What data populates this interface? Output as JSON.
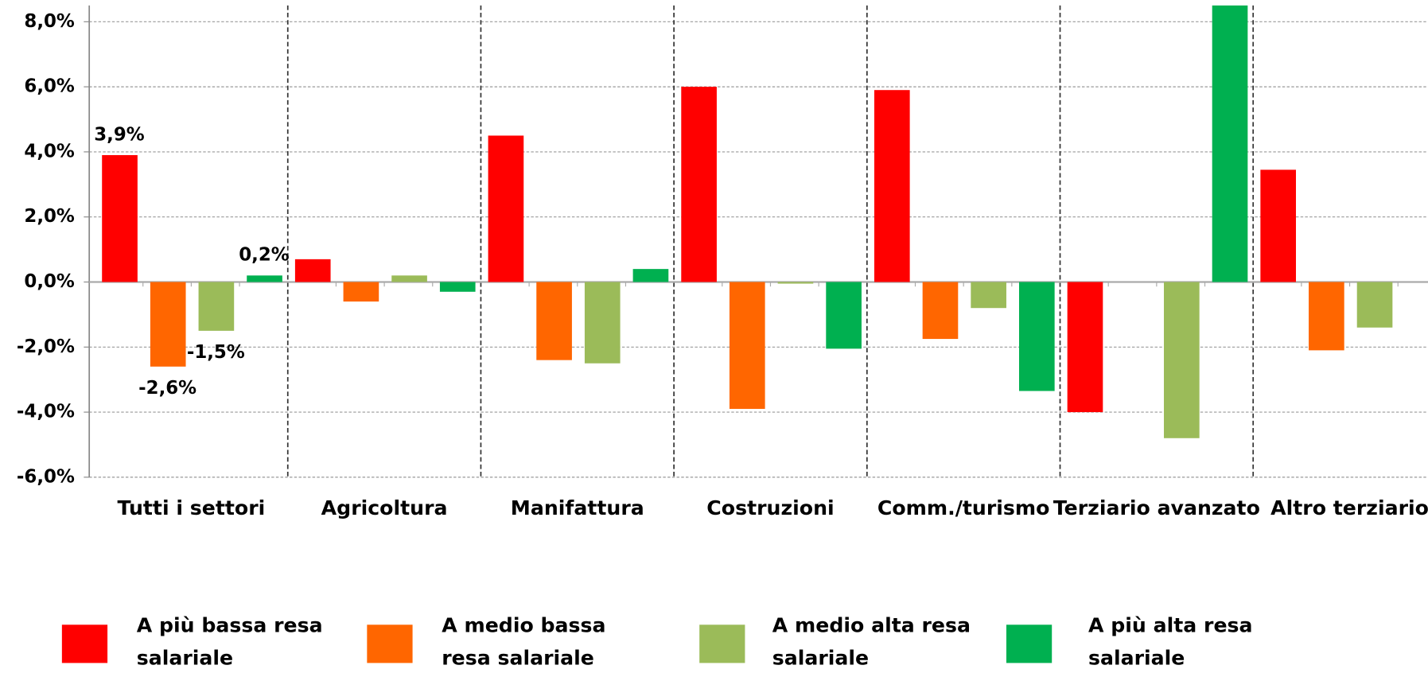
{
  "chart_data": {
    "type": "bar",
    "categories": [
      "Tutti i settori",
      "Agricoltura",
      "Manifattura",
      "Costruzioni",
      "Comm./turismo",
      "Terziario avanzato",
      "Altro terziario"
    ],
    "series": [
      {
        "name": "A più bassa resa salariale",
        "color": "#ff0000",
        "values": [
          3.9,
          0.7,
          4.5,
          6.0,
          5.9,
          -4.0,
          3.45
        ],
        "value_labels": [
          "3,9%",
          null,
          null,
          null,
          null,
          null,
          null
        ]
      },
      {
        "name": "A medio bassa resa salariale",
        "color": "#ff6600",
        "values": [
          -2.6,
          -0.6,
          -2.4,
          -3.9,
          -1.75,
          0,
          -2.1
        ],
        "value_labels": [
          "-2,6%",
          null,
          null,
          null,
          null,
          null,
          null
        ]
      },
      {
        "name": "A medio alta resa salariale",
        "color": "#9bbb59",
        "values": [
          -1.5,
          0.2,
          -2.5,
          -0.05,
          -0.8,
          -4.8,
          -1.4
        ],
        "value_labels": [
          "-1,5%",
          null,
          null,
          null,
          null,
          null,
          null
        ]
      },
      {
        "name": "A più alta resa salariale",
        "color": "#00b050",
        "values": [
          0.2,
          -0.3,
          0.4,
          -2.05,
          -3.35,
          8.5,
          null
        ],
        "value_labels": [
          "0,2%",
          null,
          null,
          null,
          null,
          null,
          null
        ]
      }
    ],
    "ylim": [
      -6,
      8.5
    ],
    "yticks": [
      {
        "value": -6,
        "label": "-6,0%"
      },
      {
        "value": -4,
        "label": "-4,0%"
      },
      {
        "value": -2,
        "label": "-2,0%"
      },
      {
        "value": 0,
        "label": "0,0%"
      },
      {
        "value": 2,
        "label": "2,0%"
      },
      {
        "value": 4,
        "label": "4,0%"
      },
      {
        "value": 6,
        "label": "6,0%"
      },
      {
        "value": 8,
        "label": "8,0%"
      }
    ],
    "grid": true,
    "legend": "bottom"
  }
}
